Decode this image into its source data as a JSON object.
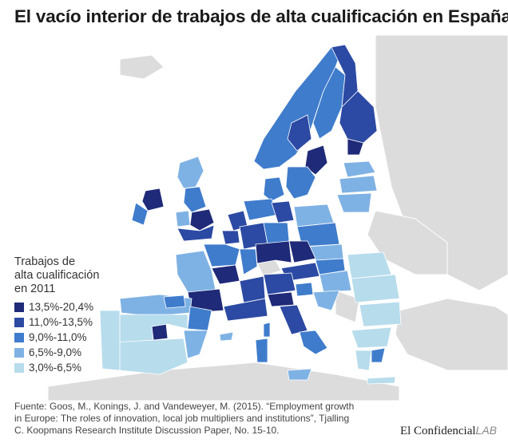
{
  "title": "El vacío interior de trabajos de alta cualificación en España",
  "legend": {
    "title_lines": [
      "Trabajos de",
      "alta cualificación",
      "en 2011"
    ],
    "items": [
      {
        "label": "13,5%-20,4%",
        "color": "#1f2a78"
      },
      {
        "label": "11,0%-13,5%",
        "color": "#2c4aa3"
      },
      {
        "label": "9,0%-11,0%",
        "color": "#3f7ccc"
      },
      {
        "label": "6,5%-9,0%",
        "color": "#7fb2e4"
      },
      {
        "label": "3,0%-6,5%",
        "color": "#b7dcec"
      }
    ]
  },
  "colors": {
    "background_land": "#dcdcdc",
    "no_data": "#cfcfcf",
    "sea": "#ffffff",
    "border": "#ffffff"
  },
  "source": {
    "lines": [
      "Fuente: Goos, M., Konings, J. and Vandeweyer, M. (2015). “Employment growth",
      "in Europe: The roles of innovation, local job multipliers and institutions”, Tjalling",
      "C. Koopmans Research Institute Discussion Paper, No. 15-10."
    ]
  },
  "brand": {
    "name": "El Confidencial",
    "suffix": "LAB"
  }
}
